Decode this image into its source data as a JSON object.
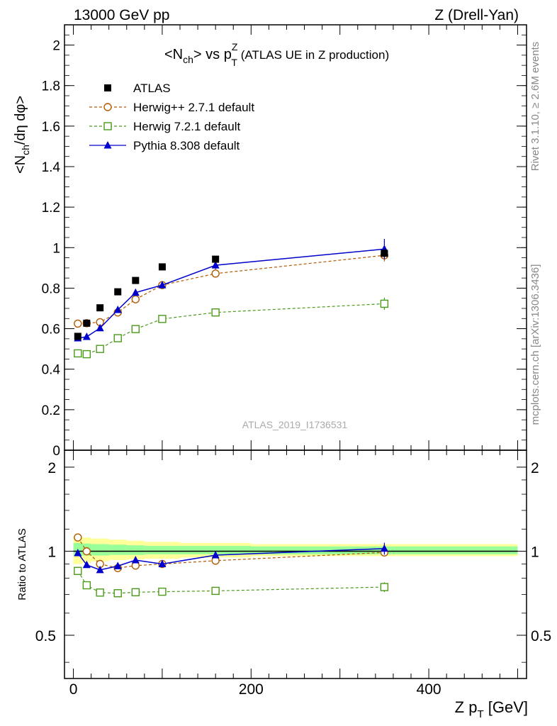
{
  "header": {
    "left": "13000 GeV pp",
    "right": "Z (Drell-Yan)"
  },
  "side_labels": {
    "rivet": "Rivet 3.1.10, ≥ 2.6M events",
    "mcplots": "mcplots.cern.ch [arXiv:1306.3436]"
  },
  "colors": {
    "atlas": "#000000",
    "herwigpp": "#b35900",
    "herwig7": "#4a9a1a",
    "pythia": "#0000cc",
    "band_yellow": "#ffff99",
    "band_green": "#99ff99"
  },
  "chart_data": [
    {
      "type": "scatter",
      "title": {
        "pre": "<N",
        "sub1": "ch",
        "mid": "> vs p",
        "sup": "Z",
        "sub2": "T",
        "post": " (ATLAS UE in Z production)"
      },
      "ylabel": {
        "pre": "<N",
        "sub": "ch",
        "post": "/dη dφ>"
      },
      "watermark": "ATLAS_2019_I1736531",
      "xlim": [
        -10,
        510
      ],
      "ylim": [
        0,
        2.1
      ],
      "yticks": [
        0,
        0.2,
        0.4,
        0.6,
        0.8,
        1,
        1.2,
        1.4,
        1.6,
        1.8,
        2
      ],
      "ytick_labels": [
        "0",
        "0.2",
        "0.4",
        "0.6",
        "0.8",
        "1",
        "1.2",
        "1.4",
        "1.6",
        "1.8",
        "2"
      ],
      "legend_position": "top-left",
      "series": [
        {
          "name": "ATLAS",
          "style": "data",
          "x": [
            5,
            15,
            30,
            50,
            70,
            100,
            160,
            350
          ],
          "y": [
            0.562,
            0.627,
            0.703,
            0.782,
            0.838,
            0.905,
            0.943,
            0.972
          ],
          "err": [
            0.01,
            0.01,
            0.01,
            0.01,
            0.01,
            0.01,
            0.01,
            0.02
          ]
        },
        {
          "name": "Herwig++ 2.7.1 default",
          "style": "circle",
          "x": [
            5,
            15,
            30,
            50,
            70,
            100,
            160,
            350
          ],
          "y": [
            0.625,
            0.627,
            0.632,
            0.68,
            0.745,
            0.815,
            0.872,
            0.962
          ],
          "err": [
            0.005,
            0.005,
            0.005,
            0.006,
            0.007,
            0.008,
            0.01,
            0.03
          ]
        },
        {
          "name": "Herwig 7.2.1 default",
          "style": "square",
          "x": [
            5,
            15,
            30,
            50,
            70,
            100,
            160,
            350
          ],
          "y": [
            0.478,
            0.474,
            0.5,
            0.553,
            0.598,
            0.648,
            0.68,
            0.723
          ],
          "err": [
            0.005,
            0.005,
            0.005,
            0.006,
            0.007,
            0.008,
            0.01,
            0.03
          ]
        },
        {
          "name": "Pythia 8.308 default",
          "style": "triangle",
          "x": [
            5,
            15,
            30,
            50,
            70,
            100,
            160,
            350
          ],
          "y": [
            0.553,
            0.56,
            0.603,
            0.693,
            0.778,
            0.815,
            0.913,
            0.993
          ],
          "err": [
            0.005,
            0.005,
            0.006,
            0.007,
            0.008,
            0.015,
            0.02,
            0.05
          ]
        }
      ]
    },
    {
      "type": "scatter",
      "ylabel": "Ratio to ATLAS",
      "xlabel": {
        "pre": "Z p",
        "sub": "T",
        "post": " [GeV]"
      },
      "xlim": [
        -10,
        510
      ],
      "ylim": [
        0.35,
        2.3
      ],
      "y_scale": "log",
      "yticks": [
        0.5,
        1,
        2
      ],
      "ytick_labels": [
        "0.5",
        "1",
        "2"
      ],
      "xticks": [
        0,
        200,
        400
      ],
      "xtick_labels": [
        "0",
        "200",
        "400"
      ],
      "bands": {
        "edges": [
          0,
          10,
          20,
          40,
          60,
          80,
          120,
          200,
          500
        ],
        "yellow_lo": [
          0.9,
          0.91,
          0.92,
          0.93,
          0.935,
          0.94,
          0.95,
          0.96
        ],
        "yellow_hi": [
          1.13,
          1.12,
          1.11,
          1.1,
          1.09,
          1.08,
          1.07,
          1.06
        ],
        "green_lo": [
          0.96,
          0.965,
          0.965,
          0.97,
          0.97,
          0.975,
          0.975,
          0.975
        ],
        "green_hi": [
          1.07,
          1.065,
          1.06,
          1.055,
          1.05,
          1.045,
          1.045,
          1.04
        ]
      },
      "series": [
        {
          "name": "Herwig++ 2.7.1 default",
          "style": "circle",
          "x": [
            5,
            15,
            30,
            50,
            70,
            100,
            160,
            350
          ],
          "y": [
            1.12,
            0.999,
            0.9,
            0.87,
            0.888,
            0.9,
            0.925,
            0.99
          ],
          "err": [
            0.01,
            0.01,
            0.01,
            0.01,
            0.01,
            0.01,
            0.01,
            0.03
          ]
        },
        {
          "name": "Herwig 7.2.1 default",
          "style": "square",
          "x": [
            5,
            15,
            30,
            50,
            70,
            100,
            160,
            350
          ],
          "y": [
            0.85,
            0.755,
            0.711,
            0.707,
            0.713,
            0.716,
            0.721,
            0.744
          ],
          "err": [
            0.01,
            0.01,
            0.01,
            0.01,
            0.01,
            0.01,
            0.01,
            0.03
          ]
        },
        {
          "name": "Pythia 8.308 default",
          "style": "triangle",
          "x": [
            5,
            15,
            30,
            50,
            70,
            100,
            160,
            350
          ],
          "y": [
            0.985,
            0.893,
            0.857,
            0.885,
            0.929,
            0.9,
            0.968,
            1.022
          ],
          "err": [
            0.01,
            0.01,
            0.01,
            0.01,
            0.01,
            0.015,
            0.02,
            0.05
          ]
        }
      ]
    }
  ]
}
